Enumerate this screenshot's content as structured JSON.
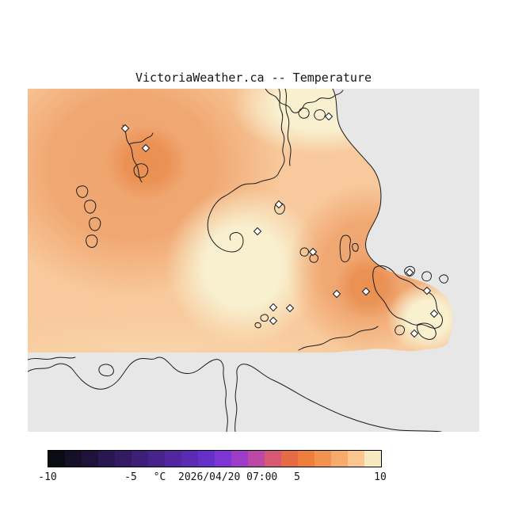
{
  "title": "VictoriaWeather.ca -- Temperature",
  "map": {
    "colors": {
      "background": "#e7e7e7",
      "field_base": "#f8c99c",
      "warm_blob": "#efa26b",
      "warm_core": "#e98e50",
      "cool_cream": "#f8f1d0",
      "mild_band": "#f9d9ae",
      "coastline": "#1b1b1b",
      "station_fill": "#ffffff"
    },
    "station_marker": "diamond",
    "stations": [
      [
        123,
        50
      ],
      [
        149,
        75
      ],
      [
        380,
        35
      ],
      [
        317,
        146
      ],
      [
        290,
        180
      ],
      [
        360,
        206
      ],
      [
        390,
        259
      ],
      [
        427,
        256
      ],
      [
        310,
        276
      ],
      [
        331,
        277
      ],
      [
        310,
        293
      ],
      [
        482,
        232
      ],
      [
        504,
        255
      ],
      [
        513,
        284
      ],
      [
        488,
        309
      ]
    ]
  },
  "colorbar": {
    "unit": "°C",
    "datetime": "2026/04/20 07:00",
    "annotation": "°C  2026/04/20 07:00",
    "range_min": -10,
    "range_max": 10,
    "ticks": [
      {
        "label": "-10",
        "pos": 0
      },
      {
        "label": "-5",
        "pos": 105
      },
      {
        "label": "5",
        "pos": 315
      },
      {
        "label": "10",
        "pos": 420
      }
    ],
    "segment_colors": [
      "#0b0b13",
      "#150f27",
      "#1f133b",
      "#29174f",
      "#331b63",
      "#3d1f77",
      "#47238b",
      "#51279f",
      "#5b2bb3",
      "#6530c7",
      "#7d36d3",
      "#9c3cc9",
      "#bc48a6",
      "#d65874",
      "#e66a45",
      "#ee7e3c",
      "#f2924f",
      "#f6ab6c",
      "#f9c690",
      "#f7e9bf"
    ]
  }
}
